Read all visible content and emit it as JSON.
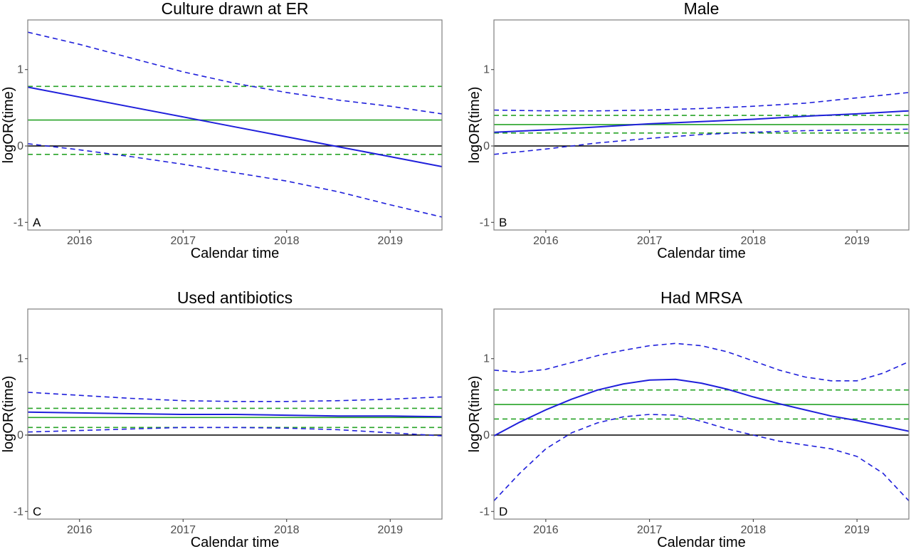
{
  "chart_data": [
    {
      "type": "line",
      "title": "Culture drawn at ER",
      "panel_label": "A",
      "xlabel": "Calendar time",
      "ylabel": "logOR(time)",
      "xlim": [
        2015.5,
        2019.5
      ],
      "ylim": [
        -1.1,
        1.65
      ],
      "xticks": [
        2016,
        2017,
        2018,
        2019
      ],
      "xtick_labels": [
        "2016",
        "2017",
        "2018",
        "2019"
      ],
      "yticks": [
        -1,
        0,
        1
      ],
      "ytick_labels": [
        "-1",
        "0",
        "1"
      ],
      "grid": false,
      "reference_line": 0,
      "constant_estimate": {
        "value": 0.34,
        "lower": -0.11,
        "upper": 0.78
      },
      "series": [
        {
          "x": [
            2015.5,
            2016.0,
            2016.5,
            2017.0,
            2017.5,
            2018.0,
            2018.5,
            2019.0,
            2019.5
          ],
          "y": [
            0.77,
            0.64,
            0.51,
            0.38,
            0.25,
            0.12,
            -0.01,
            -0.14,
            -0.27
          ]
        },
        {
          "x": [
            2015.5,
            2016.0,
            2016.5,
            2017.0,
            2017.5,
            2018.0,
            2018.5,
            2019.0,
            2019.5
          ],
          "y": [
            1.49,
            1.33,
            1.15,
            0.97,
            0.82,
            0.7,
            0.6,
            0.52,
            0.42
          ]
        },
        {
          "x": [
            2015.5,
            2016.0,
            2016.5,
            2017.0,
            2017.5,
            2018.0,
            2018.5,
            2019.0,
            2019.5
          ],
          "y": [
            0.03,
            -0.05,
            -0.14,
            -0.24,
            -0.35,
            -0.46,
            -0.6,
            -0.77,
            -0.93
          ]
        }
      ]
    },
    {
      "type": "line",
      "title": "Male",
      "panel_label": "B",
      "xlabel": "Calendar time",
      "ylabel": "logOR(time)",
      "xlim": [
        2015.5,
        2019.5
      ],
      "ylim": [
        -1.1,
        1.65
      ],
      "xticks": [
        2016,
        2017,
        2018,
        2019
      ],
      "xtick_labels": [
        "2016",
        "2017",
        "2018",
        "2019"
      ],
      "yticks": [
        -1,
        0,
        1
      ],
      "ytick_labels": [
        "-1",
        "0",
        "1"
      ],
      "grid": false,
      "reference_line": 0,
      "constant_estimate": {
        "value": 0.28,
        "lower": 0.17,
        "upper": 0.4
      },
      "series": [
        {
          "x": [
            2015.5,
            2016.0,
            2016.5,
            2017.0,
            2017.5,
            2018.0,
            2018.5,
            2019.0,
            2019.5
          ],
          "y": [
            0.18,
            0.21,
            0.25,
            0.29,
            0.32,
            0.35,
            0.39,
            0.42,
            0.46
          ]
        },
        {
          "x": [
            2015.5,
            2016.0,
            2016.5,
            2017.0,
            2017.5,
            2018.0,
            2018.5,
            2019.0,
            2019.5
          ],
          "y": [
            0.47,
            0.46,
            0.46,
            0.47,
            0.49,
            0.52,
            0.56,
            0.63,
            0.7
          ]
        },
        {
          "x": [
            2015.5,
            2016.0,
            2016.5,
            2017.0,
            2017.5,
            2018.0,
            2018.5,
            2019.0,
            2019.5
          ],
          "y": [
            -0.11,
            -0.04,
            0.04,
            0.1,
            0.15,
            0.18,
            0.2,
            0.21,
            0.22
          ]
        }
      ]
    },
    {
      "type": "line",
      "title": "Used antibiotics",
      "panel_label": "C",
      "xlabel": "Calendar time",
      "ylabel": "logOR(time)",
      "xlim": [
        2015.5,
        2019.5
      ],
      "ylim": [
        -1.1,
        1.65
      ],
      "xticks": [
        2016,
        2017,
        2018,
        2019
      ],
      "xtick_labels": [
        "2016",
        "2017",
        "2018",
        "2019"
      ],
      "yticks": [
        -1,
        0,
        1
      ],
      "ytick_labels": [
        "-1",
        "0",
        "1"
      ],
      "grid": false,
      "reference_line": 0,
      "constant_estimate": {
        "value": 0.23,
        "lower": 0.1,
        "upper": 0.35
      },
      "series": [
        {
          "x": [
            2015.5,
            2016.0,
            2016.5,
            2017.0,
            2017.5,
            2018.0,
            2018.5,
            2019.0,
            2019.5
          ],
          "y": [
            0.3,
            0.29,
            0.28,
            0.27,
            0.27,
            0.26,
            0.25,
            0.25,
            0.24
          ]
        },
        {
          "x": [
            2015.5,
            2016.0,
            2016.5,
            2017.0,
            2017.5,
            2018.0,
            2018.5,
            2019.0,
            2019.5
          ],
          "y": [
            0.56,
            0.52,
            0.48,
            0.45,
            0.44,
            0.44,
            0.45,
            0.47,
            0.5
          ]
        },
        {
          "x": [
            2015.5,
            2016.0,
            2016.5,
            2017.0,
            2017.5,
            2018.0,
            2018.5,
            2019.0,
            2019.5
          ],
          "y": [
            0.04,
            0.06,
            0.08,
            0.1,
            0.1,
            0.09,
            0.07,
            0.03,
            -0.01
          ]
        }
      ]
    },
    {
      "type": "line",
      "title": "Had MRSA",
      "panel_label": "D",
      "xlabel": "Calendar time",
      "ylabel": "logOR(time)",
      "xlim": [
        2015.5,
        2019.5
      ],
      "ylim": [
        -1.1,
        1.65
      ],
      "xticks": [
        2016,
        2017,
        2018,
        2019
      ],
      "xtick_labels": [
        "2016",
        "2017",
        "2018",
        "2019"
      ],
      "yticks": [
        -1,
        0,
        1
      ],
      "ytick_labels": [
        "-1",
        "0",
        "1"
      ],
      "grid": false,
      "reference_line": 0,
      "constant_estimate": {
        "value": 0.4,
        "lower": 0.21,
        "upper": 0.59
      },
      "series": [
        {
          "x": [
            2015.5,
            2015.75,
            2016.0,
            2016.25,
            2016.5,
            2016.75,
            2017.0,
            2017.25,
            2017.5,
            2017.75,
            2018.0,
            2018.25,
            2018.5,
            2018.75,
            2019.0,
            2019.25,
            2019.5
          ],
          "y": [
            -0.01,
            0.17,
            0.33,
            0.47,
            0.59,
            0.67,
            0.72,
            0.73,
            0.68,
            0.6,
            0.5,
            0.41,
            0.33,
            0.25,
            0.19,
            0.12,
            0.05
          ]
        },
        {
          "x": [
            2015.5,
            2015.75,
            2016.0,
            2016.25,
            2016.5,
            2016.75,
            2017.0,
            2017.25,
            2017.5,
            2017.75,
            2018.0,
            2018.25,
            2018.5,
            2018.75,
            2019.0,
            2019.25,
            2019.5
          ],
          "y": [
            0.85,
            0.82,
            0.86,
            0.95,
            1.04,
            1.11,
            1.17,
            1.2,
            1.17,
            1.09,
            0.97,
            0.85,
            0.76,
            0.71,
            0.71,
            0.81,
            0.96
          ]
        },
        {
          "x": [
            2015.5,
            2015.75,
            2016.0,
            2016.25,
            2016.5,
            2016.75,
            2017.0,
            2017.25,
            2017.5,
            2017.75,
            2018.0,
            2018.25,
            2018.5,
            2018.75,
            2019.0,
            2019.25,
            2019.5
          ],
          "y": [
            -0.86,
            -0.5,
            -0.18,
            0.03,
            0.16,
            0.24,
            0.27,
            0.26,
            0.18,
            0.08,
            0.0,
            -0.08,
            -0.13,
            -0.18,
            -0.28,
            -0.5,
            -0.86
          ]
        }
      ]
    }
  ],
  "colors": {
    "time_varying": "#1f1fdb",
    "constant": "#27a327",
    "reference": "#000000",
    "panel_border": "#7f7f7f",
    "tick_text": "#4d4d4d"
  }
}
